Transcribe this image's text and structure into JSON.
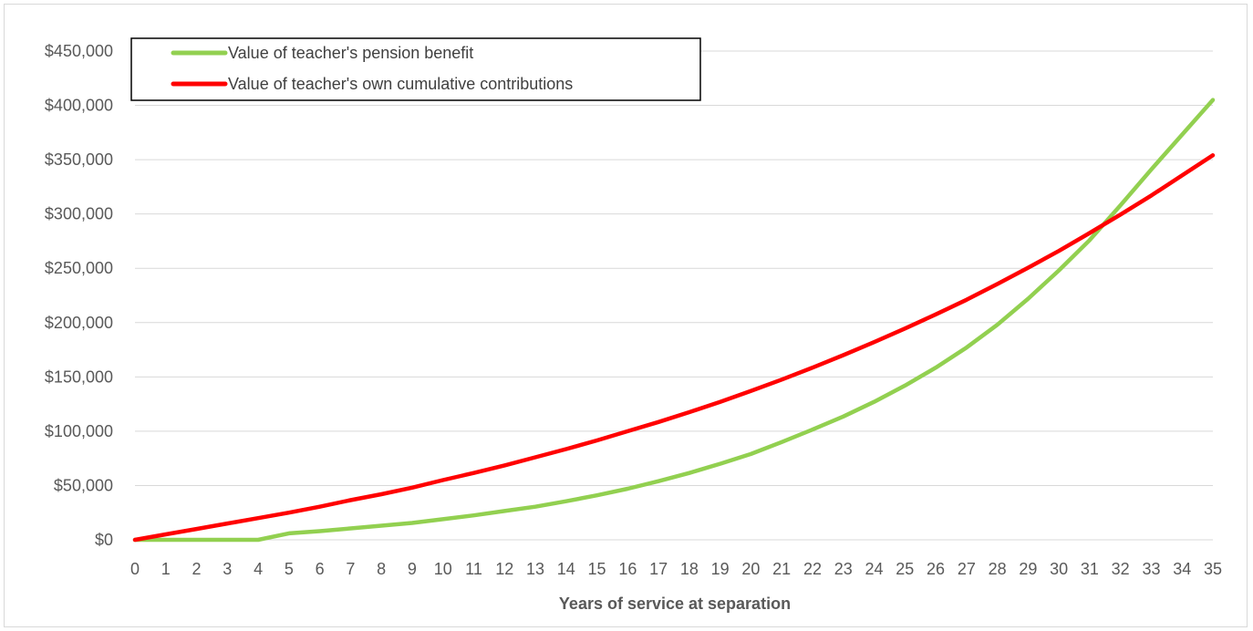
{
  "chart_data": {
    "type": "line",
    "title": "",
    "xlabel": "Years of service at separation",
    "ylabel": "",
    "x": [
      0,
      1,
      2,
      3,
      4,
      5,
      6,
      7,
      8,
      9,
      10,
      11,
      12,
      13,
      14,
      15,
      16,
      17,
      18,
      19,
      20,
      21,
      22,
      23,
      24,
      25,
      26,
      27,
      28,
      29,
      30,
      31,
      32,
      33,
      34,
      35
    ],
    "ylim": [
      0,
      450000
    ],
    "yticks": [
      0,
      50000,
      100000,
      150000,
      200000,
      250000,
      300000,
      350000,
      400000,
      450000
    ],
    "ytick_labels": [
      "$0",
      "$50,000",
      "$100,000",
      "$150,000",
      "$200,000",
      "$250,000",
      "$300,000",
      "$350,000",
      "$400,000",
      "$450,000"
    ],
    "grid": "horizontal",
    "legend_position": "top-left",
    "series": [
      {
        "name": "Value of teacher's pension benefit",
        "color": "#92d050",
        "values": [
          0,
          0,
          0,
          0,
          0,
          6000,
          8000,
          10500,
          13000,
          15500,
          19000,
          22500,
          26500,
          30500,
          35500,
          41000,
          47000,
          54000,
          61500,
          70000,
          79000,
          90000,
          101500,
          113500,
          127000,
          142000,
          158500,
          177000,
          198000,
          222000,
          248000,
          276000,
          308000,
          341000,
          373000,
          405000
        ]
      },
      {
        "name": "Value of teacher's own cumulative contributions",
        "color": "#ff0000",
        "values": [
          0,
          5000,
          10000,
          15000,
          20000,
          25000,
          30500,
          36500,
          42000,
          48000,
          55000,
          61500,
          68500,
          76000,
          83500,
          91500,
          100000,
          108500,
          117500,
          127000,
          137000,
          147500,
          158500,
          170000,
          182000,
          194500,
          207500,
          221000,
          235500,
          250500,
          266000,
          282500,
          299500,
          317000,
          335500,
          354000
        ]
      }
    ]
  }
}
